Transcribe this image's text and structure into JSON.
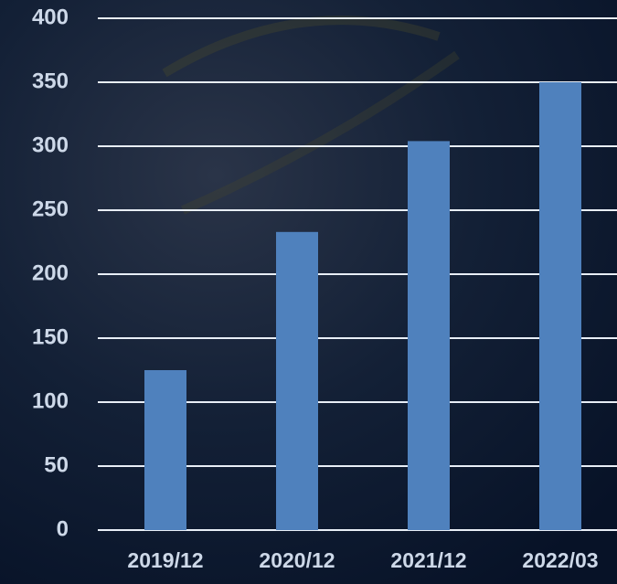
{
  "chart_data": {
    "type": "bar",
    "categories": [
      "2019/12",
      "2020/12",
      "2021/12",
      "2022/03"
    ],
    "values": [
      125,
      233,
      304,
      350
    ],
    "color": "#4f81bd",
    "ylim": [
      0,
      400
    ],
    "yticks": [
      0,
      50,
      100,
      150,
      200,
      250,
      300,
      350,
      400
    ],
    "grid": true
  }
}
